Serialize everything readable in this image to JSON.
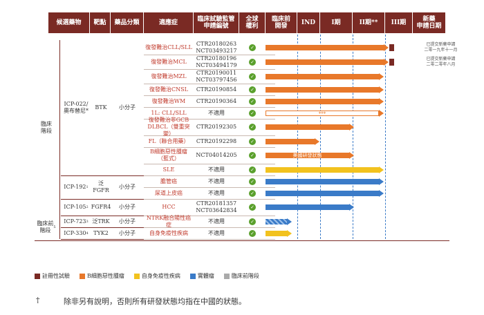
{
  "headers": [
    "候選藥物",
    "靶點",
    "藥品分類",
    "適應症",
    "臨床試驗監管\n申請編號",
    "全球\n權利",
    "臨床前\n開發",
    "IND",
    "I期",
    "II期**",
    "III期",
    "新藥\n申請日期"
  ],
  "stage_labels": {
    "clinical": "臨床\n階段",
    "preclinical": "臨床前\n階段"
  },
  "stage_preclinical_sup": "5",
  "drugs": [
    {
      "name": "ICP-022/\n奧布替尼*",
      "target": "BTK",
      "class": "小分子"
    },
    {
      "name": "ICP-192",
      "name_sup": "1",
      "target": "泛FGFR",
      "class": "小分子"
    },
    {
      "name": "ICP-105",
      "name_sup": "2",
      "target": "FGFR4",
      "class": "小分子"
    },
    {
      "name": "ICP-723",
      "name_sup": "3",
      "target": "泛TRK",
      "class": "小分子"
    },
    {
      "name": "ICP-330",
      "name_sup": "4",
      "target": "TYK2",
      "class": "小分子"
    }
  ],
  "rows": [
    {
      "indication": "復發難治CLL/SLL",
      "trial": "CTR20180263\nNCT03493217",
      "color": "#e8782a",
      "end": "nda",
      "nda_note": "已提交新藥申請\n二零一九年十一月"
    },
    {
      "indication": "復發難治MCL",
      "trial": "CTR20180196\nNCT03494179",
      "color": "#e8782a",
      "end": "nda",
      "nda_note": "已提交新藥申請\n二零二零年八月"
    },
    {
      "indication": "復發難治MZL",
      "trial": "CTR20190011\nNCT03797456",
      "color": "#e8782a",
      "end": "p2"
    },
    {
      "indication": "復發難治CNSL",
      "trial": "CTR20190854",
      "color": "#e8782a",
      "end": "p2"
    },
    {
      "indication": "復發難治WM",
      "trial": "CTR20190364",
      "color": "#e8782a",
      "end": "p2"
    },
    {
      "indication": "1L: CLL/SLL",
      "trial": "不適用",
      "color": "#e8782a",
      "end": "p2",
      "outline": true,
      "bar_text": "***"
    },
    {
      "indication": "復發難治非GCB\nDLBCL（雙重突變）",
      "trial": "CTR20192305",
      "color": "#e8782a",
      "end": "p1"
    },
    {
      "indication": "FL（聯合用藥）",
      "trial": "CTR20192298",
      "color": "#e8782a",
      "end": "ind"
    },
    {
      "indication": "B細胞惡性腫瘤\n（藍式）",
      "trial": "NCT04014205",
      "color": "#e8782a",
      "end": "p1",
      "bar_text": "美國研發狀態"
    },
    {
      "indication": "SLE",
      "trial": "不適用",
      "color": "#f2c21e",
      "end": "p2"
    },
    {
      "indication": "膽管癌",
      "trial": "不適用",
      "color": "#3a7bc8",
      "end": "p2"
    },
    {
      "indication": "尿道上皮癌",
      "trial": "不適用",
      "color": "#3a7bc8",
      "end": "p2"
    },
    {
      "indication": "HCC",
      "trial": "CTR20181357\nNCT03642834",
      "color": "#3a7bc8",
      "end": "p1"
    },
    {
      "indication": "NTRK融合陽性癌症",
      "trial": "不適用",
      "color": "#3a7bc8",
      "end": "pre",
      "hatched": true
    },
    {
      "indication": "自身免疫性疾病",
      "trial": "不適用",
      "color": "#f2c21e",
      "end": "pre"
    }
  ],
  "legend": [
    {
      "label": "註冊性試驗",
      "color": "#7a2a24"
    },
    {
      "label": "B細胞惡性腫瘤",
      "color": "#e8782a"
    },
    {
      "label": "自身免疫性疾病",
      "color": "#f2c21e"
    },
    {
      "label": "實體瘤",
      "color": "#3a7bc8"
    },
    {
      "label": "臨床前階段",
      "color": "#aaaaaa"
    }
  ],
  "footnote": {
    "mark": "†",
    "text": "除非另有說明，否則所有研發狀態均指在中國的狀態。"
  }
}
